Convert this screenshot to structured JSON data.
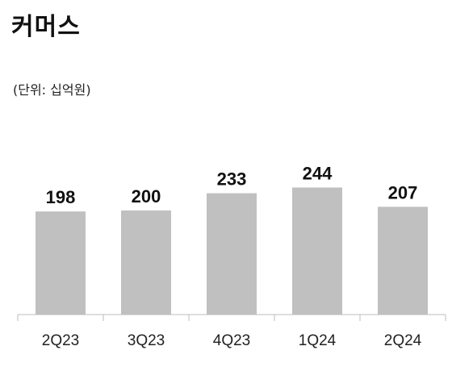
{
  "chart_title": "커머스",
  "unit_label": "(단위: 십억원)",
  "colors": {
    "bar": "#c0c0c0",
    "axis": "#bdbdbd",
    "text": "#111111"
  },
  "chart_data": {
    "type": "bar",
    "title": "커머스",
    "subtitle": "(단위: 십억원)",
    "categories": [
      "2Q23",
      "3Q23",
      "4Q23",
      "1Q24",
      "2Q24"
    ],
    "values": [
      198,
      200,
      233,
      244,
      207
    ],
    "xlabel": "",
    "ylabel": "",
    "grid": false,
    "data_labels": true
  }
}
